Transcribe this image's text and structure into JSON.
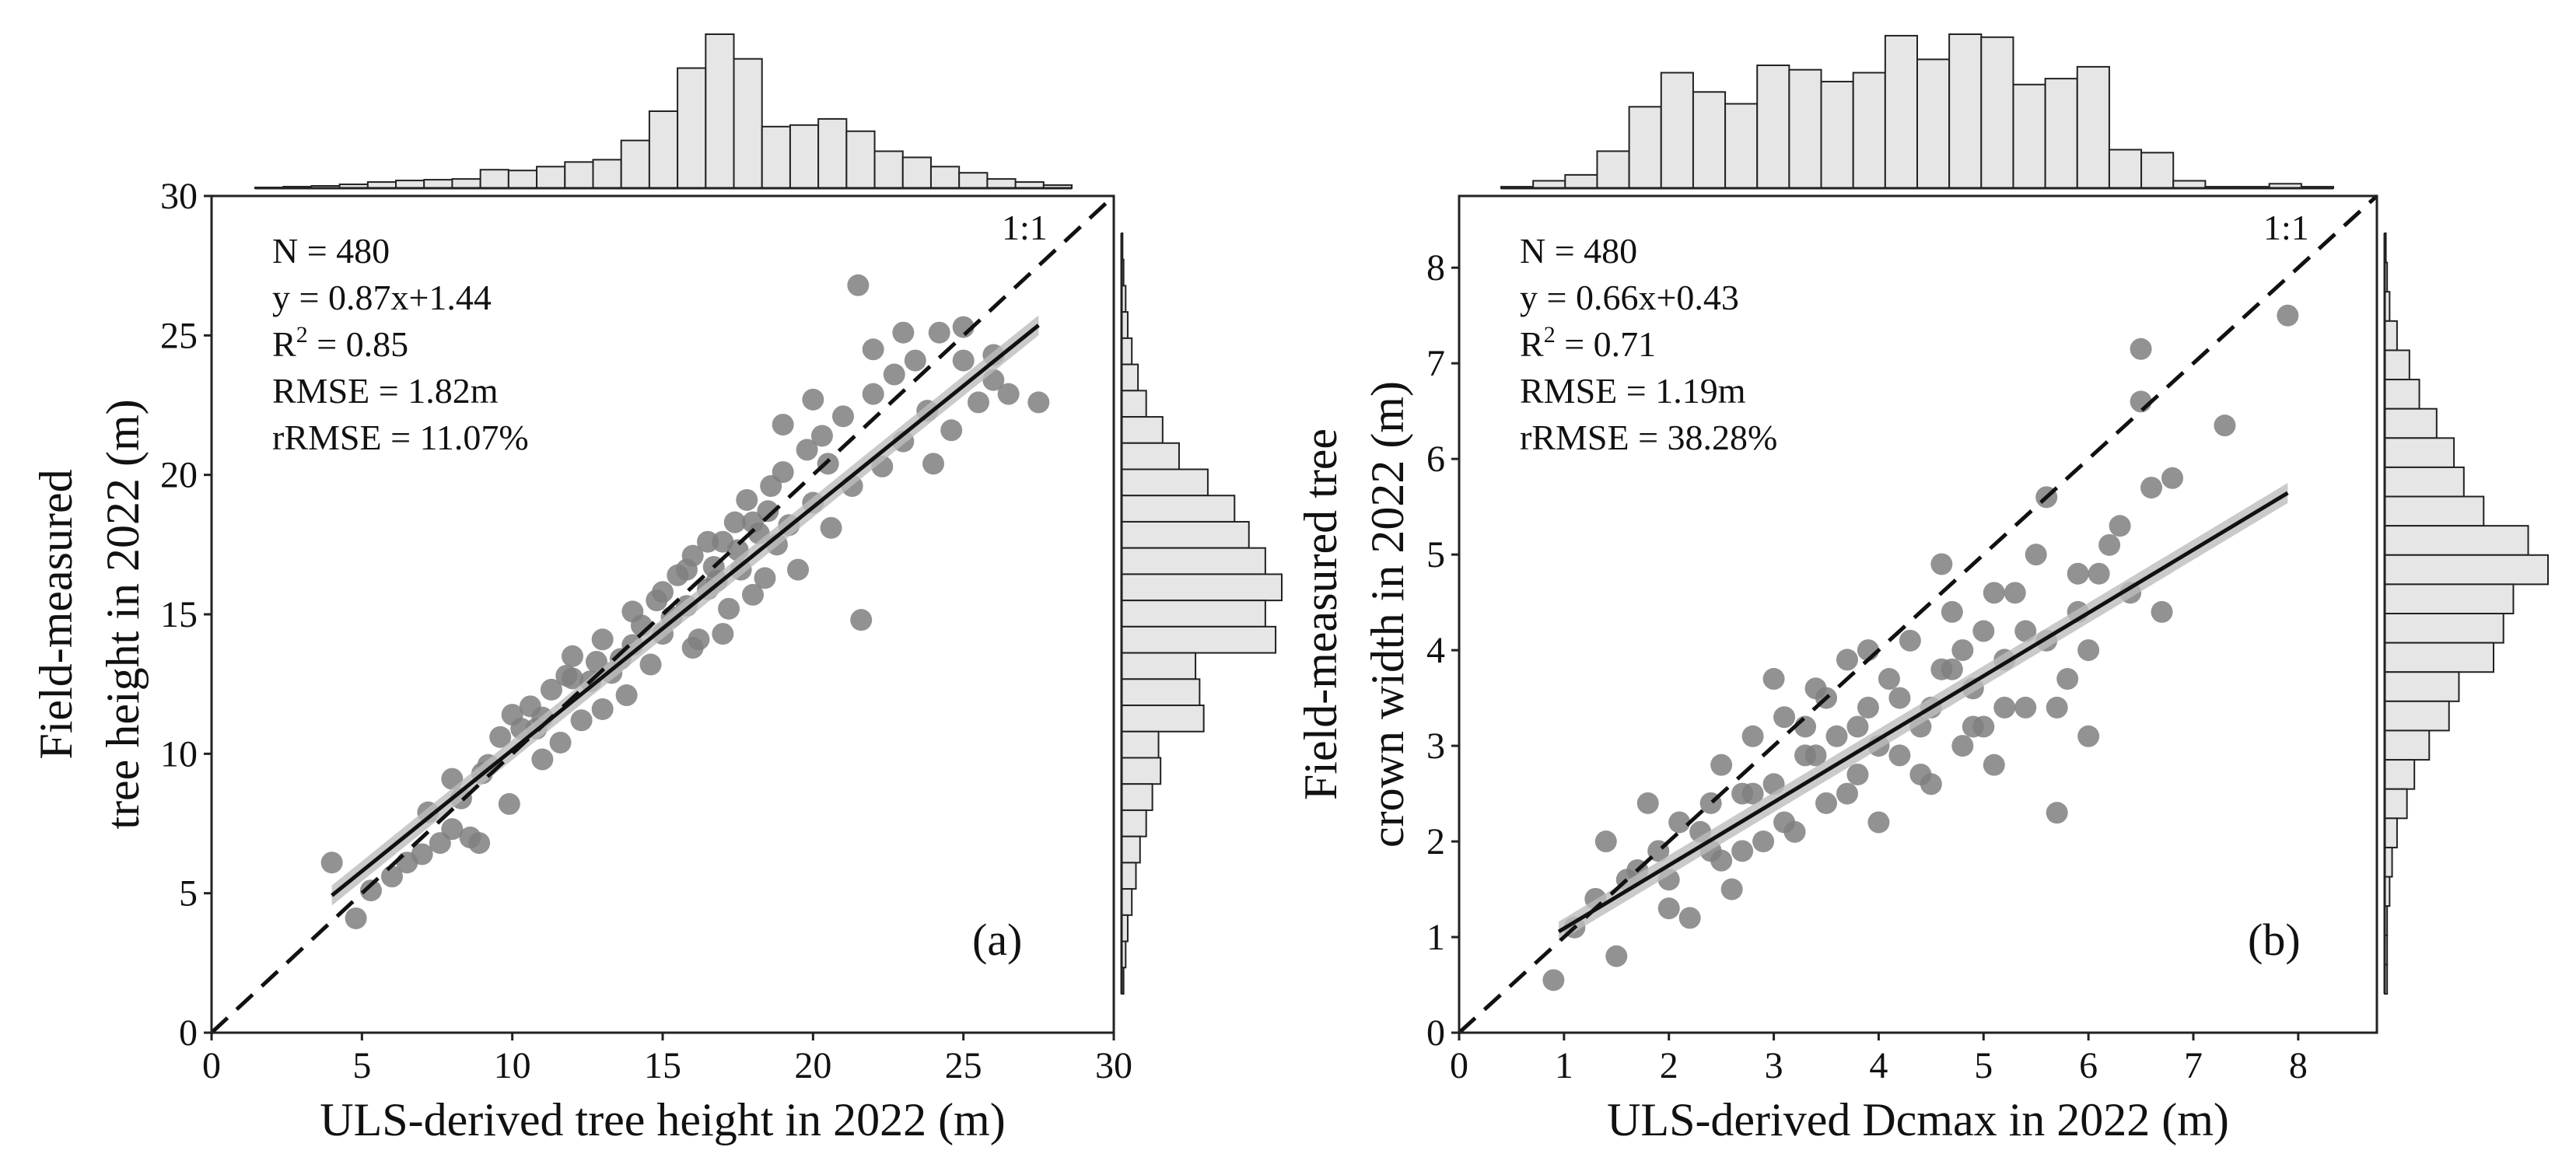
{
  "chart_data": [
    {
      "panel": "(a)",
      "type": "scatter",
      "xlabel": "ULS-derived tree height in 2022 (m)",
      "ylabel_line1": "Field-measured",
      "ylabel_line2": "tree height in 2022 (m)",
      "xlim": [
        0,
        30
      ],
      "ylim": [
        0,
        30
      ],
      "xticks": [
        0,
        5,
        10,
        15,
        20,
        25,
        30
      ],
      "yticks": [
        0,
        5,
        10,
        15,
        20,
        25,
        30
      ],
      "stats": {
        "n": "N = 480",
        "equation": "y = 0.87x+1.44",
        "r2_prefix": "R",
        "r2_sup": "2",
        "r2_value": " = 0.85",
        "rmse": "RMSE = 1.82m",
        "rrmse": "rRMSE = 11.07%"
      },
      "one_to_one_label": "1:1",
      "regression": {
        "slope": 0.87,
        "intercept": 1.44,
        "x_range": [
          4,
          27.5
        ]
      },
      "points": [
        [
          4,
          6.1
        ],
        [
          4.8,
          4.1
        ],
        [
          5.3,
          5.1
        ],
        [
          6,
          5.6
        ],
        [
          6.5,
          6.1
        ],
        [
          7,
          6.4
        ],
        [
          7.2,
          7.9
        ],
        [
          7.6,
          6.8
        ],
        [
          8,
          7.3
        ],
        [
          8.3,
          8.4
        ],
        [
          8.6,
          7
        ],
        [
          8.9,
          6.8
        ],
        [
          9.2,
          9.6
        ],
        [
          9.6,
          10.6
        ],
        [
          9.9,
          8.2
        ],
        [
          10.3,
          10.9
        ],
        [
          10.6,
          11.7
        ],
        [
          11,
          9.8
        ],
        [
          11.3,
          12.3
        ],
        [
          11.6,
          10.4
        ],
        [
          12,
          13.5
        ],
        [
          12.3,
          11.2
        ],
        [
          12.6,
          12.6
        ],
        [
          13,
          14.1
        ],
        [
          13.3,
          12.9
        ],
        [
          13.6,
          13.4
        ],
        [
          14,
          15.1
        ],
        [
          14.3,
          14.6
        ],
        [
          14.6,
          13.2
        ],
        [
          15,
          15.8
        ],
        [
          15.3,
          14.9
        ],
        [
          15.5,
          16.4
        ],
        [
          15.8,
          15.3
        ],
        [
          16,
          17.1
        ],
        [
          16.2,
          14.1
        ],
        [
          16.5,
          15.9
        ],
        [
          16.7,
          16.7
        ],
        [
          17,
          17.6
        ],
        [
          17.2,
          15.2
        ],
        [
          17.4,
          18.3
        ],
        [
          17.6,
          16.6
        ],
        [
          17.8,
          19.1
        ],
        [
          18,
          15.7
        ],
        [
          18.2,
          17.9
        ],
        [
          18.4,
          16.3
        ],
        [
          18.6,
          19.6
        ],
        [
          18.8,
          17.5
        ],
        [
          19,
          20.1
        ],
        [
          19.2,
          18.2
        ],
        [
          19.5,
          16.6
        ],
        [
          19.8,
          20.9
        ],
        [
          20,
          19
        ],
        [
          20.3,
          21.4
        ],
        [
          20.6,
          18.1
        ],
        [
          21,
          22.1
        ],
        [
          21.3,
          19.6
        ],
        [
          21.6,
          14.8
        ],
        [
          22,
          22.9
        ],
        [
          22.3,
          20.3
        ],
        [
          22.7,
          23.6
        ],
        [
          23,
          21.2
        ],
        [
          23.4,
          24.1
        ],
        [
          23.8,
          22.3
        ],
        [
          24.2,
          25.1
        ],
        [
          24.6,
          21.6
        ],
        [
          25,
          24.1
        ],
        [
          25.5,
          22.6
        ],
        [
          26,
          23.4
        ],
        [
          26.5,
          22.9
        ],
        [
          27.5,
          22.6
        ],
        [
          21.5,
          26.8
        ],
        [
          20,
          22.7
        ],
        [
          18,
          18.3
        ],
        [
          16.5,
          17.6
        ],
        [
          15,
          14.3
        ],
        [
          12,
          12.7
        ],
        [
          10,
          11.4
        ],
        [
          22,
          24.5
        ],
        [
          23,
          25.1
        ],
        [
          25,
          25.3
        ],
        [
          19,
          21.8
        ],
        [
          17,
          14.3
        ],
        [
          16,
          13.8
        ],
        [
          14,
          13.9
        ],
        [
          13,
          11.6
        ],
        [
          11,
          11.3
        ],
        [
          9,
          9.3
        ],
        [
          8,
          9.1
        ],
        [
          24,
          20.4
        ],
        [
          26,
          24.3
        ],
        [
          20.5,
          20.4
        ],
        [
          18.5,
          18.7
        ],
        [
          17.5,
          17.3
        ],
        [
          16.8,
          16.2
        ],
        [
          15.8,
          16.6
        ],
        [
          14.8,
          15.5
        ],
        [
          13.8,
          12.1
        ],
        [
          12.8,
          13.3
        ],
        [
          11.8,
          12.8
        ],
        [
          10.8,
          10.9
        ]
      ],
      "hist_top": [
        0.5,
        1,
        1.5,
        2.5,
        4,
        5,
        5.5,
        6,
        12,
        11.5,
        14,
        17,
        18.5,
        31,
        50,
        78,
        100,
        84,
        40,
        41,
        45,
        37,
        24,
        20,
        14,
        10,
        6,
        4,
        2
      ],
      "hist_right": [
        0.5,
        1,
        2,
        3,
        5,
        8,
        12,
        20,
        28,
        42,
        55,
        62,
        70,
        78,
        70,
        75,
        36,
        38,
        40,
        18,
        19,
        15,
        12,
        9,
        7,
        5,
        3,
        2,
        1
      ]
    },
    {
      "panel": "(b)",
      "type": "scatter",
      "xlabel": "ULS-derived Dcmax in 2022 (m)",
      "ylabel_line1": "Field-measured tree",
      "ylabel_line2": "crown width in 2022 (m)",
      "xlim": [
        0,
        8.75
      ],
      "ylim": [
        0,
        8.75
      ],
      "xticks": [
        0,
        1,
        2,
        3,
        4,
        5,
        6,
        7,
        8
      ],
      "yticks": [
        0,
        1,
        2,
        3,
        4,
        5,
        6,
        7,
        8
      ],
      "stats": {
        "n": "N = 480",
        "equation": "y = 0.66x+0.43",
        "r2_prefix": "R",
        "r2_sup": "2",
        "r2_value": " = 0.71",
        "rmse": "RMSE = 1.19m",
        "rrmse": "rRMSE = 38.28%"
      },
      "one_to_one_label": "1:1",
      "regression": {
        "slope": 0.66,
        "intercept": 0.43,
        "x_range": [
          0.95,
          7.9
        ]
      },
      "points": [
        [
          0.9,
          0.55
        ],
        [
          1.1,
          1.1
        ],
        [
          1.3,
          1.4
        ],
        [
          1.5,
          0.8
        ],
        [
          1.7,
          1.7
        ],
        [
          1.8,
          2.4
        ],
        [
          2,
          1.6
        ],
        [
          2.1,
          2.2
        ],
        [
          2.2,
          1.2
        ],
        [
          2.4,
          1.9
        ],
        [
          2.5,
          2.8
        ],
        [
          2.6,
          1.5
        ],
        [
          2.7,
          2.5
        ],
        [
          2.8,
          3.1
        ],
        [
          2.9,
          2.0
        ],
        [
          3.0,
          2.6
        ],
        [
          3.1,
          3.3
        ],
        [
          3.2,
          2.1
        ],
        [
          3.3,
          2.9
        ],
        [
          3.4,
          3.6
        ],
        [
          3.5,
          2.4
        ],
        [
          3.6,
          3.1
        ],
        [
          3.7,
          3.9
        ],
        [
          3.8,
          2.7
        ],
        [
          3.9,
          3.4
        ],
        [
          4.0,
          2.2
        ],
        [
          4.1,
          3.7
        ],
        [
          4.2,
          2.9
        ],
        [
          4.3,
          4.1
        ],
        [
          4.4,
          3.2
        ],
        [
          4.5,
          2.6
        ],
        [
          4.6,
          3.8
        ],
        [
          4.7,
          4.4
        ],
        [
          4.8,
          3.0
        ],
        [
          4.9,
          3.6
        ],
        [
          5.0,
          4.2
        ],
        [
          5.1,
          2.8
        ],
        [
          5.2,
          3.9
        ],
        [
          5.3,
          4.6
        ],
        [
          5.4,
          3.4
        ],
        [
          5.5,
          5.0
        ],
        [
          5.6,
          4.1
        ],
        [
          5.7,
          2.3
        ],
        [
          5.8,
          3.7
        ],
        [
          5.9,
          4.4
        ],
        [
          6.0,
          3.1
        ],
        [
          6.1,
          4.8
        ],
        [
          6.3,
          5.3
        ],
        [
          6.4,
          4.6
        ],
        [
          6.5,
          6.6
        ],
        [
          6.5,
          7.15
        ],
        [
          6.6,
          5.7
        ],
        [
          6.7,
          4.4
        ],
        [
          7.3,
          6.35
        ],
        [
          7.9,
          7.5
        ],
        [
          6.8,
          5.8
        ],
        [
          5.9,
          4.8
        ],
        [
          4.6,
          4.9
        ],
        [
          3.3,
          3.2
        ],
        [
          2.3,
          2.1
        ],
        [
          1.6,
          1.6
        ],
        [
          1.4,
          2.0
        ],
        [
          2.0,
          1.3
        ],
        [
          3.0,
          3.7
        ],
        [
          3.9,
          4.0
        ],
        [
          4.8,
          4.0
        ],
        [
          5.6,
          5.6
        ],
        [
          6.2,
          5.1
        ],
        [
          5.0,
          3.2
        ],
        [
          4.4,
          2.7
        ],
        [
          3.7,
          2.5
        ],
        [
          2.7,
          1.9
        ],
        [
          1.9,
          1.9
        ],
        [
          2.4,
          2.4
        ],
        [
          3.5,
          3.5
        ],
        [
          4.2,
          3.5
        ],
        [
          5.2,
          3.4
        ],
        [
          5.7,
          3.4
        ],
        [
          3.1,
          2.2
        ],
        [
          2.5,
          1.8
        ],
        [
          4.0,
          3.0
        ],
        [
          4.5,
          3.4
        ],
        [
          3.8,
          3.2
        ],
        [
          5.4,
          4.2
        ],
        [
          4.9,
          3.2
        ],
        [
          3.4,
          2.9
        ],
        [
          2.8,
          2.5
        ],
        [
          6.0,
          4.0
        ],
        [
          5.1,
          4.6
        ],
        [
          4.7,
          3.8
        ]
      ],
      "hist_top": [
        1,
        5,
        9,
        25,
        55,
        78,
        65,
        57,
        83,
        80,
        72,
        78,
        103,
        87,
        104,
        102,
        70,
        74,
        82,
        26,
        24,
        5,
        1,
        1,
        3,
        1
      ],
      "hist_right": [
        0.5,
        1,
        2,
        5,
        10,
        14,
        21,
        28,
        32,
        40,
        58,
        66,
        52,
        48,
        44,
        30,
        26,
        18,
        12,
        9,
        5,
        3,
        2,
        1,
        1,
        1
      ]
    }
  ]
}
